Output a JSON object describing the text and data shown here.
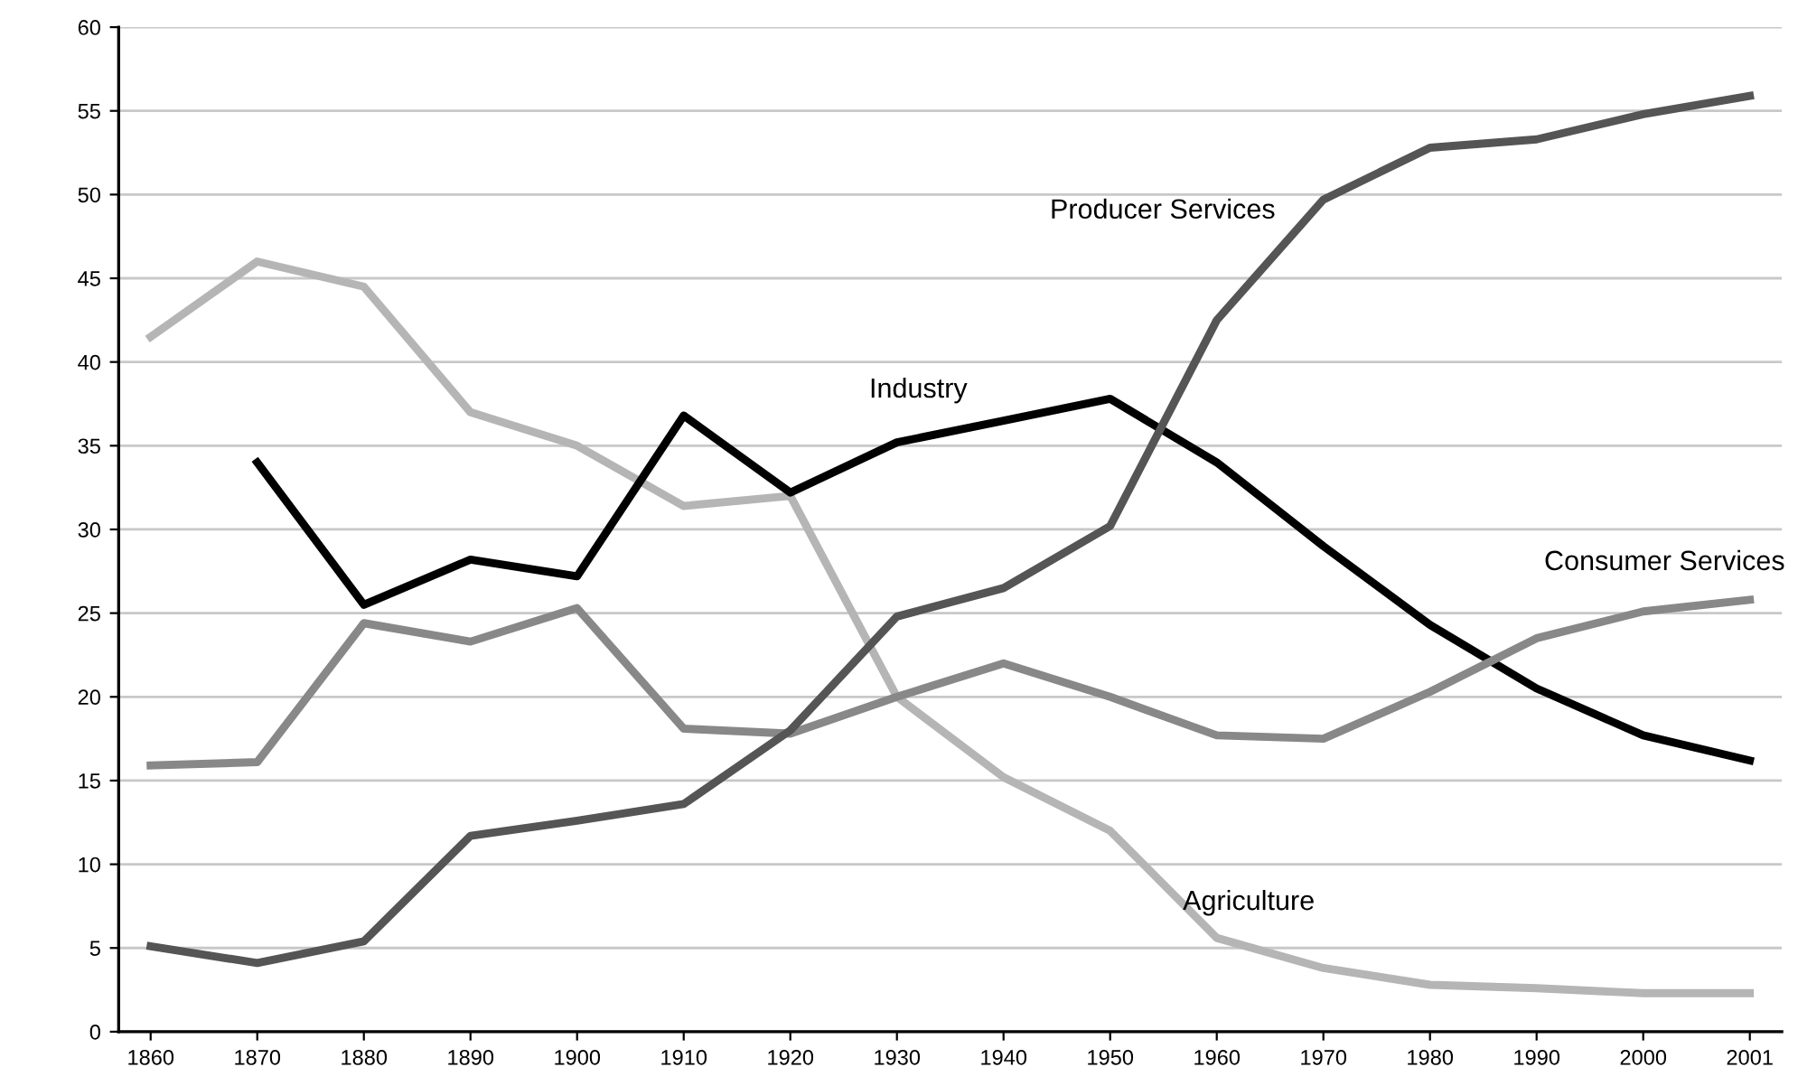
{
  "chart_data": {
    "type": "line",
    "categories": [
      "1860",
      "1870",
      "1880",
      "1890",
      "1900",
      "1910",
      "1920",
      "1930",
      "1940",
      "1950",
      "1960",
      "1970",
      "1980",
      "1990",
      "2000",
      "2001"
    ],
    "series": [
      {
        "name": "Agriculture",
        "color": "#b5b5b5",
        "values": [
          41.5,
          46,
          44.5,
          37,
          35,
          31.4,
          32,
          20,
          15.2,
          12,
          5.6,
          3.8,
          2.8,
          2.6,
          2.3,
          2.3
        ]
      },
      {
        "name": "Industry",
        "color": "#000000",
        "values": [
          null,
          34,
          25.5,
          28.2,
          27.2,
          36.8,
          32.2,
          35.2,
          36.5,
          37.8,
          34,
          29,
          24.3,
          20.5,
          17.7,
          16.2
        ]
      },
      {
        "name": "Consumer Services",
        "color": "#888888",
        "values": [
          15.9,
          16.1,
          24.4,
          23.3,
          25.3,
          18.1,
          17.8,
          20,
          22,
          20,
          17.7,
          17.5,
          20.3,
          23.5,
          25.1,
          25.8
        ]
      },
      {
        "name": "Producer Services",
        "color": "#555555",
        "values": [
          5.1,
          4.1,
          5.4,
          11.7,
          12.6,
          13.6,
          18,
          24.8,
          26.5,
          30.2,
          42.5,
          49.7,
          52.8,
          53.3,
          54.8,
          55.9
        ]
      }
    ],
    "ylim": [
      0,
      60
    ],
    "yticks": [
      0,
      5,
      10,
      15,
      20,
      25,
      30,
      35,
      40,
      45,
      50,
      55,
      60
    ],
    "grid": "y",
    "legend": false,
    "marker": "none",
    "line_style": "solid"
  }
}
